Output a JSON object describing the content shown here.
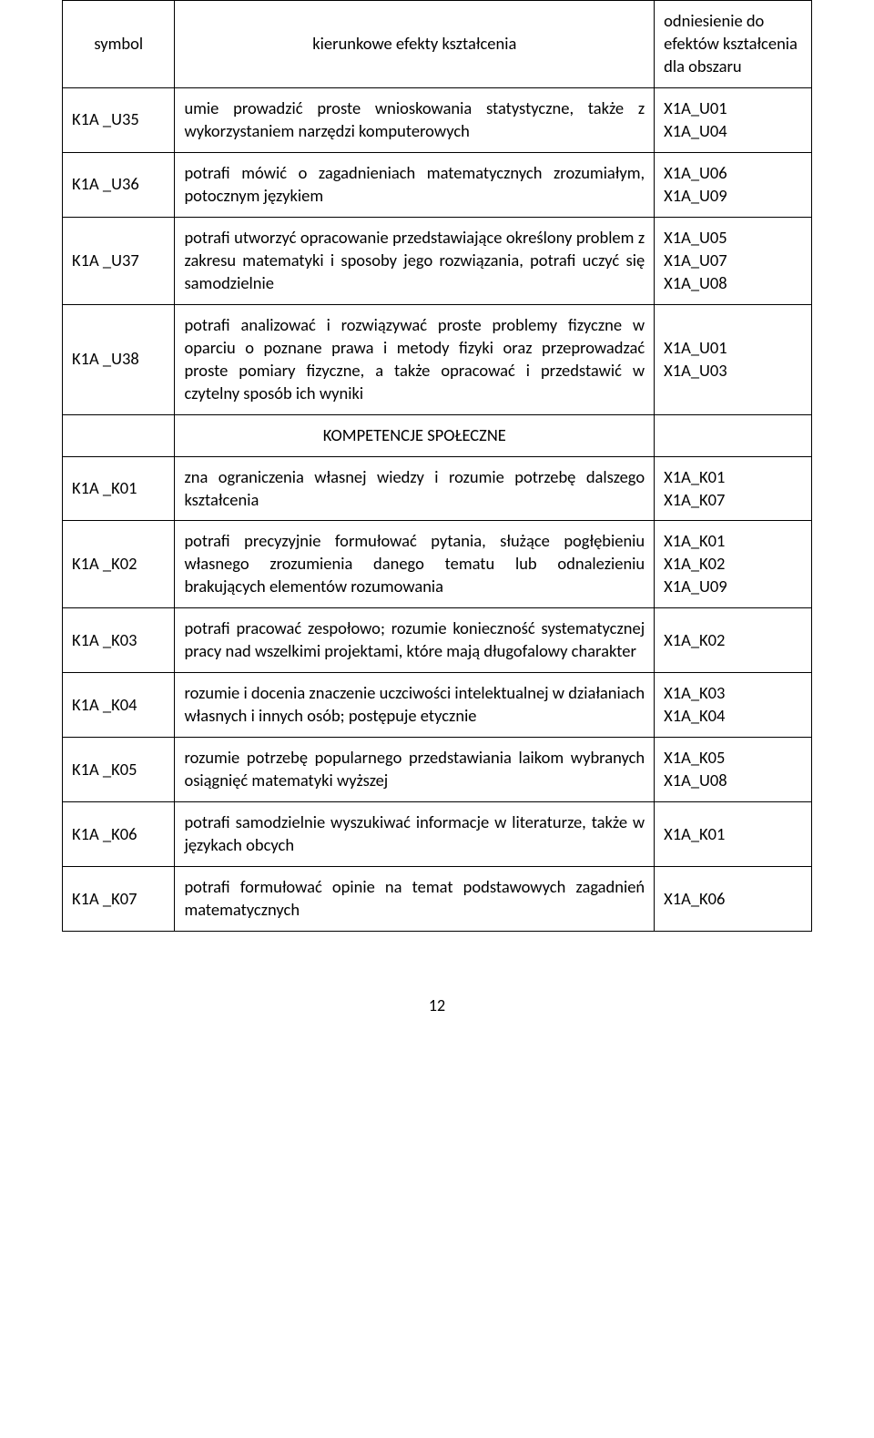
{
  "header": {
    "symbol": "symbol",
    "desc": "kierunkowe efekty kształcenia",
    "ref": "odniesienie do efektów kształcenia dla obszaru"
  },
  "rows_top": [
    {
      "sym": "K1A _U35",
      "desc": "umie prowadzić proste wnioskowania statystyczne, także z wykorzystaniem narzędzi komputerowych",
      "refs": [
        "X1A_U01",
        "X1A_U04"
      ]
    },
    {
      "sym": "K1A _U36",
      "desc": "potrafi mówić o zagadnieniach matematycznych zrozumiałym, potocznym językiem",
      "refs": [
        "X1A_U06",
        "X1A_U09"
      ]
    },
    {
      "sym": "K1A _U37",
      "desc": "potrafi utworzyć opracowanie przedstawiające określony problem z zakresu matematyki i sposoby jego rozwiązania, potrafi uczyć się samodzielnie",
      "refs": [
        "X1A_U05",
        "X1A_U07",
        "X1A_U08"
      ]
    },
    {
      "sym": "K1A _U38",
      "desc": "potrafi analizować i rozwiązywać proste problemy fizyczne w oparciu o poznane prawa i metody fizyki oraz przeprowadzać proste pomiary fizyczne, a także opracować i przedstawić w czytelny sposób ich wyniki",
      "refs": [
        "X1A_U01",
        "X1A_U03"
      ]
    }
  ],
  "section": "KOMPETENCJE SPOŁECZNE",
  "rows_bottom": [
    {
      "sym": "K1A _K01",
      "desc": "zna ograniczenia własnej wiedzy i rozumie potrzebę dalszego kształcenia",
      "refs": [
        "X1A_K01",
        "X1A_K07"
      ]
    },
    {
      "sym": "K1A _K02",
      "desc": "potrafi precyzyjnie formułować pytania, służące pogłębieniu własnego zrozumienia danego tematu lub odnalezieniu brakujących elementów rozumowania",
      "refs": [
        "X1A_K01",
        "X1A_K02",
        "X1A_U09"
      ]
    },
    {
      "sym": "K1A _K03",
      "desc": "potrafi pracować zespołowo; rozumie konieczność systematycznej pracy nad wszelkimi projektami, które mają długofalowy charakter",
      "refs": [
        "X1A_K02"
      ]
    },
    {
      "sym": "K1A _K04",
      "desc": "rozumie i docenia znaczenie uczciwości intelektualnej w działaniach własnych i innych osób; postępuje etycznie",
      "refs": [
        "X1A_K03",
        "X1A_K04"
      ]
    },
    {
      "sym": "K1A _K05",
      "desc": "rozumie potrzebę popularnego przedstawiania laikom wybranych osiągnięć matematyki wyższej",
      "refs": [
        "X1A_K05",
        "X1A_U08"
      ]
    },
    {
      "sym": "K1A _K06",
      "desc": "potrafi samodzielnie wyszukiwać informacje w literaturze, także w językach obcych",
      "refs": [
        "X1A_K01"
      ]
    },
    {
      "sym": "K1A _K07",
      "desc": "potrafi formułować opinie na temat podstawowych zagadnień matematycznych",
      "refs": [
        "X1A_K06"
      ]
    }
  ],
  "page_number": "12"
}
